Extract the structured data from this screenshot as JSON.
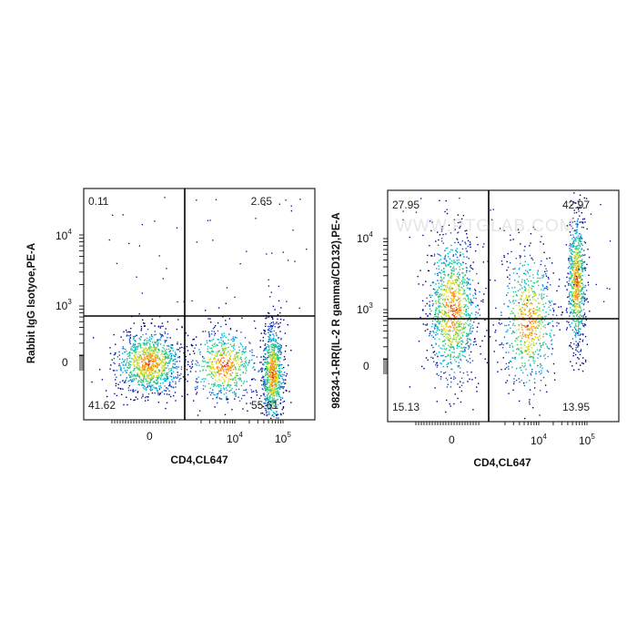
{
  "watermark": "WWW.PTGLAB.COM",
  "chart_data": [
    {
      "type": "scatter",
      "xlabel": "CD4,CL647",
      "ylabel": "Rabbit IgG Isotyoe,PE-A",
      "x_ticks": [
        "0",
        "10",
        "10"
      ],
      "x_tick_exponents": [
        "",
        "4",
        "5"
      ],
      "y_ticks": [
        "0",
        "10",
        "10"
      ],
      "y_tick_exponents": [
        "",
        "3",
        "4"
      ],
      "quadrants": {
        "top_left": "0.11",
        "top_right": "2.65",
        "bottom_left": "41.62",
        "bottom_right": "55.61"
      },
      "populations": [
        {
          "x": 0,
          "y": 0,
          "share": 0.42
        },
        {
          "x": 6000,
          "y": 150,
          "share": 0.24
        },
        {
          "x": 60000,
          "y": -40,
          "share": 0.34
        }
      ],
      "colors": [
        "#00007f",
        "#1e50c8",
        "#00b4d2",
        "#32c87d",
        "#dcdc28",
        "#f58c14",
        "#e61e0a"
      ]
    },
    {
      "type": "scatter",
      "xlabel": "CD4,CL647",
      "ylabel": "98234-1-RR(IL-2 R gamma/CD132),PE-A",
      "x_ticks": [
        "0",
        "10",
        "10"
      ],
      "x_tick_exponents": [
        "",
        "4",
        "5"
      ],
      "y_ticks": [
        "0",
        "10",
        "10"
      ],
      "y_tick_exponents": [
        "",
        "3",
        "4"
      ],
      "quadrants": {
        "top_left": "27.95",
        "top_right": "42.97",
        "bottom_left": "15.13",
        "bottom_right": "13.95"
      },
      "populations": [
        {
          "x": 0,
          "y": 1000,
          "share": 0.43
        },
        {
          "x": 6000,
          "y": 700,
          "share": 0.27
        },
        {
          "x": 60000,
          "y": 2500,
          "share": 0.3
        }
      ],
      "colors": [
        "#00007f",
        "#1e50c8",
        "#00b4d2",
        "#32c87d",
        "#dcdc28",
        "#f58c14",
        "#e61e0a"
      ]
    }
  ]
}
